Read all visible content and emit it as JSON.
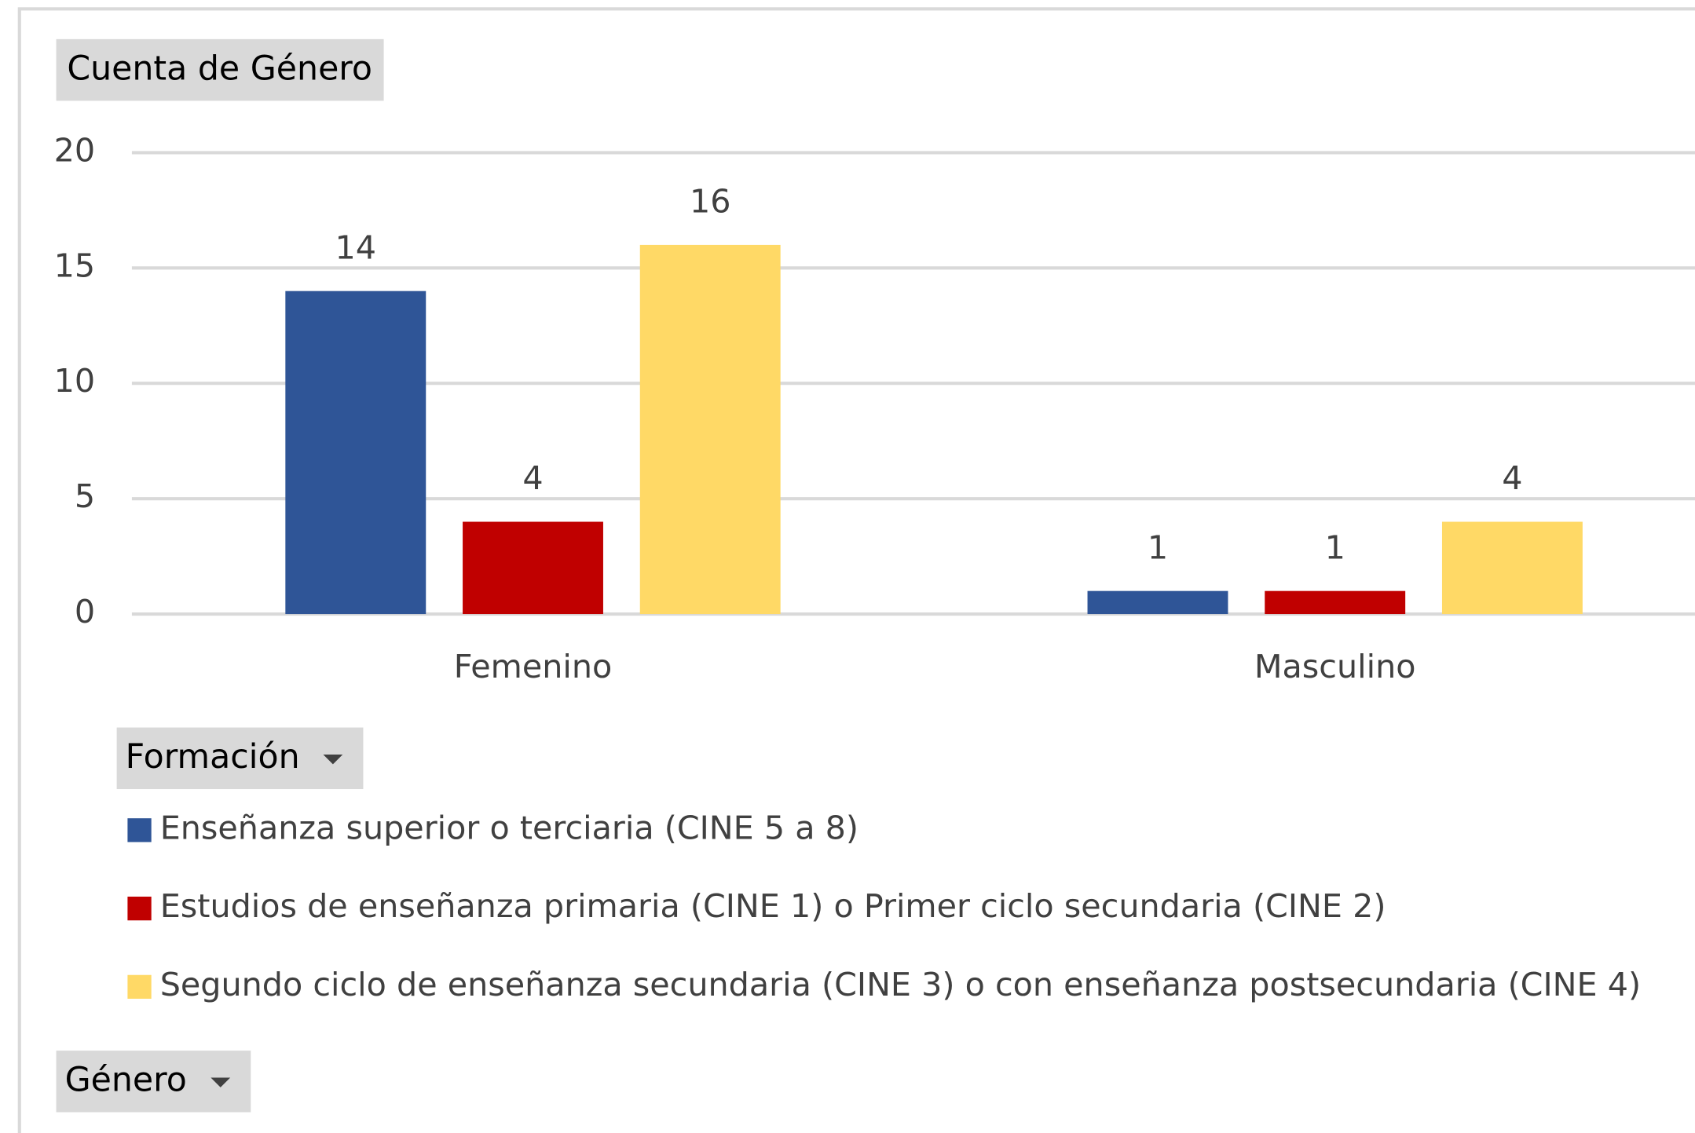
{
  "chart_data": {
    "type": "bar",
    "value_field": "Cuenta de Género",
    "legend_title": "Formación",
    "axis_field": "Género",
    "categories": [
      "Femenino",
      "Masculino"
    ],
    "series": [
      {
        "name": "Enseñanza superior o terciaria (CINE 5 a 8)",
        "color": "#2f5597",
        "values": [
          14,
          1
        ]
      },
      {
        "name": "Estudios de enseñanza primaria (CINE 1) o Primer ciclo secundaria (CINE 2)",
        "color": "#c00000",
        "values": [
          4,
          1
        ]
      },
      {
        "name": "Segundo ciclo de enseñanza secundaria (CINE 3) o con enseñanza postsecundaria (CINE 4)",
        "color": "#ffd966",
        "values": [
          16,
          4
        ]
      }
    ],
    "ylim": [
      0,
      20
    ],
    "yticks": [
      0,
      5,
      10,
      15,
      20
    ],
    "grid": true,
    "legend": "bottom"
  }
}
